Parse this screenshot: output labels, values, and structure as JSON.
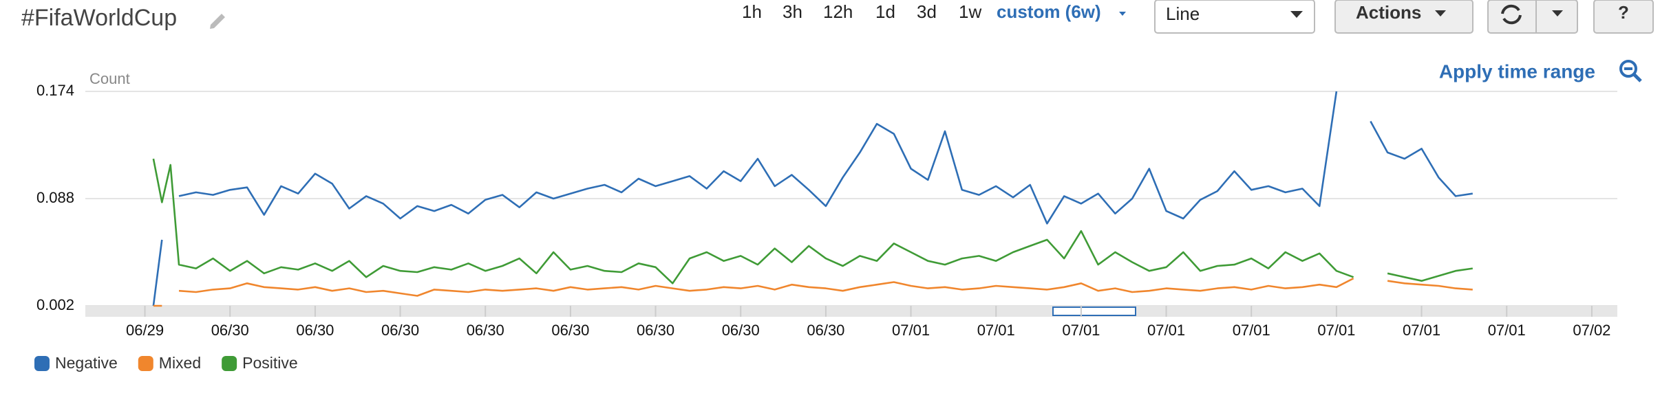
{
  "toolbar": {
    "title": "#FifaWorldCup",
    "time_ranges": [
      "1h",
      "3h",
      "12h",
      "1d",
      "3d",
      "1w"
    ],
    "custom": "custom (6w)",
    "view": "Line",
    "actions": "Actions",
    "help": "?"
  },
  "apply_time_range": "Apply time range",
  "chart_data": {
    "type": "line",
    "ylabel": "Count",
    "x": [
      8,
      9,
      10,
      11,
      13,
      15,
      17,
      19,
      21,
      23,
      25,
      27,
      29,
      31,
      33,
      35,
      37,
      39,
      41,
      43,
      45,
      47,
      49,
      51,
      53,
      55,
      57,
      59,
      61,
      63,
      65,
      67,
      69,
      71,
      73,
      75,
      77,
      79,
      81,
      83,
      85,
      87,
      89,
      91,
      93,
      95,
      97,
      99,
      101,
      103,
      105,
      107,
      109,
      111,
      113,
      115,
      117,
      119,
      121,
      123,
      125,
      127,
      129,
      131,
      133,
      135,
      137,
      139,
      141,
      143,
      145,
      147,
      149,
      151,
      153,
      155,
      157,
      159,
      161,
      163
    ],
    "series": [
      {
        "name": "Negative",
        "color": "#2e6eb5",
        "values": [
          0.002,
          0.055,
          null,
          0.09,
          0.093,
          0.091,
          0.095,
          0.097,
          0.075,
          0.098,
          0.092,
          0.108,
          0.1,
          0.08,
          0.09,
          0.084,
          0.072,
          0.082,
          0.078,
          0.083,
          0.076,
          0.087,
          0.091,
          0.081,
          0.093,
          0.088,
          0.092,
          0.096,
          0.099,
          0.093,
          0.104,
          0.098,
          0.102,
          0.106,
          0.096,
          0.11,
          0.102,
          0.12,
          0.098,
          0.107,
          0.095,
          0.082,
          0.105,
          0.125,
          0.148,
          0.14,
          0.112,
          0.103,
          0.142,
          0.095,
          0.091,
          0.098,
          0.089,
          0.099,
          0.068,
          0.09,
          0.084,
          0.092,
          0.076,
          0.088,
          0.112,
          0.078,
          0.072,
          0.087,
          0.094,
          0.11,
          0.095,
          0.098,
          0.093,
          0.096,
          0.082,
          0.174,
          null,
          0.15,
          0.125,
          0.12,
          0.128,
          0.105,
          0.09,
          0.092
        ]
      },
      {
        "name": "Mixed",
        "color": "#f0862d",
        "values": [
          0.002,
          0.002,
          null,
          0.014,
          0.013,
          0.015,
          0.016,
          0.02,
          0.017,
          0.016,
          0.015,
          0.017,
          0.014,
          0.016,
          0.013,
          0.014,
          0.012,
          0.01,
          0.015,
          0.014,
          0.013,
          0.015,
          0.014,
          0.015,
          0.016,
          0.014,
          0.017,
          0.015,
          0.016,
          0.017,
          0.015,
          0.018,
          0.016,
          0.014,
          0.015,
          0.017,
          0.016,
          0.018,
          0.015,
          0.019,
          0.017,
          0.016,
          0.014,
          0.017,
          0.019,
          0.021,
          0.018,
          0.016,
          0.017,
          0.015,
          0.016,
          0.018,
          0.017,
          0.016,
          0.015,
          0.017,
          0.02,
          0.014,
          0.016,
          0.013,
          0.014,
          0.016,
          0.015,
          0.014,
          0.016,
          0.017,
          0.015,
          0.018,
          0.016,
          0.017,
          0.019,
          0.017,
          0.024,
          null,
          0.022,
          0.02,
          0.019,
          0.018,
          0.016,
          0.015
        ]
      },
      {
        "name": "Positive",
        "color": "#3f9b36",
        "values": [
          0.12,
          0.085,
          0.115,
          0.035,
          0.032,
          0.04,
          0.03,
          0.038,
          0.028,
          0.033,
          0.031,
          0.036,
          0.03,
          0.038,
          0.025,
          0.034,
          0.03,
          0.029,
          0.033,
          0.031,
          0.036,
          0.03,
          0.034,
          0.04,
          0.028,
          0.045,
          0.031,
          0.034,
          0.03,
          0.029,
          0.036,
          0.033,
          0.02,
          0.04,
          0.045,
          0.038,
          0.042,
          0.035,
          0.048,
          0.037,
          0.05,
          0.04,
          0.034,
          0.042,
          0.038,
          0.052,
          0.045,
          0.038,
          0.035,
          0.04,
          0.042,
          0.038,
          0.045,
          0.05,
          0.055,
          0.04,
          0.062,
          0.035,
          0.045,
          0.037,
          0.03,
          0.033,
          0.045,
          0.03,
          0.034,
          0.035,
          0.04,
          0.032,
          0.045,
          0.038,
          0.044,
          0.03,
          0.025,
          null,
          0.028,
          0.025,
          0.022,
          0.026,
          0.03,
          0.032
        ]
      }
    ],
    "xlim": [
      0,
      180
    ],
    "xticks": [
      {
        "value": 7,
        "label": "06/29"
      },
      {
        "value": 17,
        "label": "06/30"
      },
      {
        "value": 27,
        "label": "06/30"
      },
      {
        "value": 37,
        "label": "06/30"
      },
      {
        "value": 47,
        "label": "06/30"
      },
      {
        "value": 57,
        "label": "06/30"
      },
      {
        "value": 67,
        "label": "06/30"
      },
      {
        "value": 77,
        "label": "06/30"
      },
      {
        "value": 87,
        "label": "06/30"
      },
      {
        "value": 97,
        "label": "07/01"
      },
      {
        "value": 107,
        "label": "07/01"
      },
      {
        "value": 117,
        "label": "07/01"
      },
      {
        "value": 127,
        "label": "07/01"
      },
      {
        "value": 137,
        "label": "07/01"
      },
      {
        "value": 147,
        "label": "07/01"
      },
      {
        "value": 157,
        "label": "07/01"
      },
      {
        "value": 167,
        "label": "07/01"
      },
      {
        "value": 177,
        "label": "07/02"
      }
    ],
    "ylim": [
      0.002,
      0.174
    ],
    "yticks": [
      0.002,
      0.088,
      0.174
    ],
    "grid": true,
    "legend": "bottom-left"
  }
}
